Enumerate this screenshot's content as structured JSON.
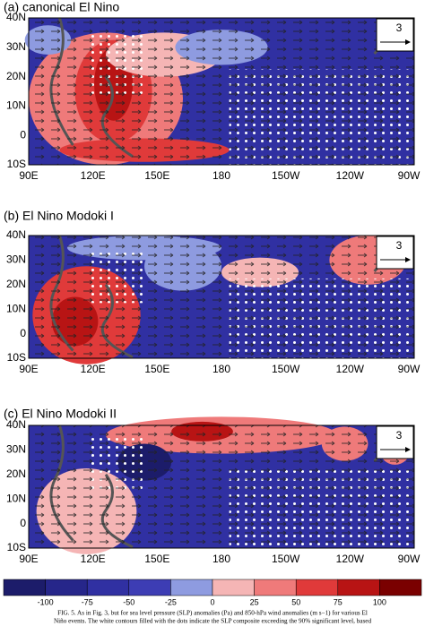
{
  "panels": [
    {
      "title": "(a) canonical El Nino",
      "reference": "3"
    },
    {
      "title": "(b) El Nino Modoki I",
      "reference": "3"
    },
    {
      "title": "(c) El Nino Modoki II",
      "reference": "3"
    }
  ],
  "lon_labels": [
    "90E",
    "120E",
    "150E",
    "180",
    "150W",
    "120W",
    "90W"
  ],
  "lat_labels": [
    "40N",
    "30N",
    "20N",
    "10N",
    "0",
    "10S"
  ],
  "colorbar": {
    "labels": [
      "-100",
      "-75",
      "-50",
      "-25",
      "0",
      "25",
      "50",
      "75",
      "100"
    ],
    "colors": [
      "#1c1c6a",
      "#26268a",
      "#3030a2",
      "#3d3db4",
      "#8e9be0",
      "#f5b5b5",
      "#ef7a7a",
      "#e03a3a",
      "#b81414",
      "#7a0000"
    ]
  },
  "caption": [
    "FIG. 5. As in Fig. 3, but for sea level pressure (SLP) anomalies (Pa) and 850-hPa wind anomalies (m s−1) for various El",
    "Niño events. The white contours filled with the dots indicate the SLP composite exceeding the 90% significant level, based"
  ]
}
